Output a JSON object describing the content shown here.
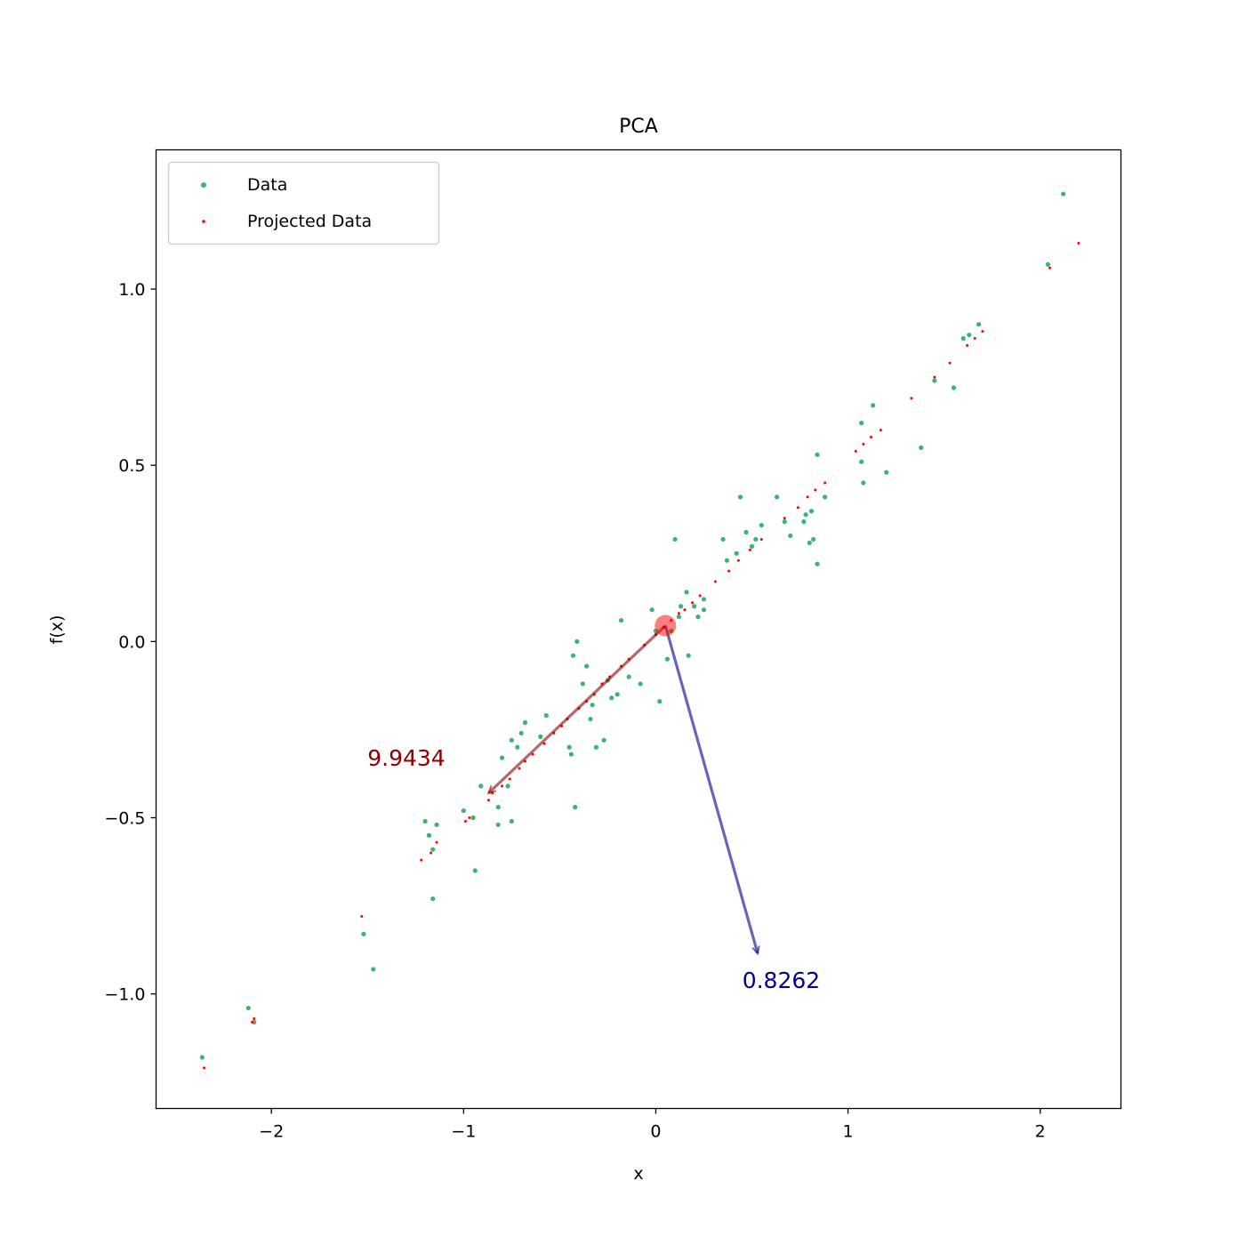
{
  "chart_data": {
    "type": "scatter",
    "title": "PCA",
    "xlabel": "x",
    "ylabel": "f(x)",
    "xlim": [
      -2.6,
      2.42
    ],
    "ylim": [
      -1.325,
      1.395
    ],
    "xticks": [
      {
        "value": -2,
        "label": "−2"
      },
      {
        "value": -1,
        "label": "−1"
      },
      {
        "value": 0,
        "label": "0"
      },
      {
        "value": 1,
        "label": "1"
      },
      {
        "value": 2,
        "label": "2"
      }
    ],
    "yticks": [
      {
        "value": -1.0,
        "label": "−1.0"
      },
      {
        "value": -0.5,
        "label": "−0.5"
      },
      {
        "value": 0.0,
        "label": "0.0"
      },
      {
        "value": 0.5,
        "label": "0.5"
      },
      {
        "value": 1.0,
        "label": "1.0"
      }
    ],
    "grid": false,
    "legend_position": "top-left",
    "series": [
      {
        "name": "Data",
        "color": "#3cb371",
        "marker_size": "medium",
        "points": [
          [
            -2.36,
            -1.18
          ],
          [
            -2.12,
            -1.04
          ],
          [
            -2.09,
            -1.08
          ],
          [
            -1.52,
            -0.83
          ],
          [
            -1.47,
            -0.93
          ],
          [
            -1.2,
            -0.51
          ],
          [
            -1.18,
            -0.55
          ],
          [
            -1.16,
            -0.73
          ],
          [
            -1.14,
            -0.52
          ],
          [
            -1.16,
            -0.59
          ],
          [
            -1.0,
            -0.48
          ],
          [
            -0.95,
            -0.5
          ],
          [
            -0.94,
            -0.65
          ],
          [
            -0.91,
            -0.41
          ],
          [
            -0.82,
            -0.47
          ],
          [
            -0.82,
            -0.52
          ],
          [
            -0.8,
            -0.33
          ],
          [
            -0.77,
            -0.41
          ],
          [
            -0.75,
            -0.28
          ],
          [
            -0.75,
            -0.51
          ],
          [
            -0.72,
            -0.3
          ],
          [
            -0.7,
            -0.26
          ],
          [
            -0.68,
            -0.23
          ],
          [
            -0.6,
            -0.27
          ],
          [
            -0.57,
            -0.21
          ],
          [
            -0.45,
            -0.3
          ],
          [
            -0.44,
            -0.32
          ],
          [
            -0.43,
            -0.04
          ],
          [
            -0.41,
            0.0
          ],
          [
            -0.42,
            -0.47
          ],
          [
            -0.38,
            -0.12
          ],
          [
            -0.36,
            -0.07
          ],
          [
            -0.34,
            -0.22
          ],
          [
            -0.33,
            -0.18
          ],
          [
            -0.31,
            -0.3
          ],
          [
            -0.27,
            -0.28
          ],
          [
            -0.25,
            -0.11
          ],
          [
            -0.23,
            -0.16
          ],
          [
            -0.2,
            -0.15
          ],
          [
            -0.18,
            0.06
          ],
          [
            -0.14,
            -0.1
          ],
          [
            -0.08,
            -0.12
          ],
          [
            -0.02,
            0.09
          ],
          [
            0.0,
            0.03
          ],
          [
            0.02,
            -0.17
          ],
          [
            0.06,
            -0.05
          ],
          [
            0.08,
            0.03
          ],
          [
            0.1,
            0.29
          ],
          [
            0.12,
            0.07
          ],
          [
            0.13,
            0.1
          ],
          [
            0.16,
            0.14
          ],
          [
            0.17,
            -0.04
          ],
          [
            0.2,
            0.1
          ],
          [
            0.22,
            0.07
          ],
          [
            0.25,
            0.12
          ],
          [
            0.25,
            0.09
          ],
          [
            0.35,
            0.29
          ],
          [
            0.37,
            0.23
          ],
          [
            0.42,
            0.25
          ],
          [
            0.44,
            0.41
          ],
          [
            0.47,
            0.31
          ],
          [
            0.5,
            0.27
          ],
          [
            0.52,
            0.29
          ],
          [
            0.55,
            0.33
          ],
          [
            0.63,
            0.41
          ],
          [
            0.67,
            0.34
          ],
          [
            0.7,
            0.3
          ],
          [
            0.77,
            0.34
          ],
          [
            0.78,
            0.36
          ],
          [
            0.8,
            0.28
          ],
          [
            0.81,
            0.37
          ],
          [
            0.82,
            0.29
          ],
          [
            0.84,
            0.53
          ],
          [
            0.84,
            0.22
          ],
          [
            0.88,
            0.41
          ],
          [
            1.07,
            0.62
          ],
          [
            1.07,
            0.51
          ],
          [
            1.08,
            0.45
          ],
          [
            1.13,
            0.67
          ],
          [
            1.2,
            0.48
          ],
          [
            1.38,
            0.55
          ],
          [
            1.45,
            0.74
          ],
          [
            1.55,
            0.72
          ],
          [
            1.6,
            0.86
          ],
          [
            1.63,
            0.87
          ],
          [
            1.68,
            0.9
          ],
          [
            2.04,
            1.07
          ],
          [
            2.12,
            1.27
          ]
        ]
      },
      {
        "name": "Projected Data",
        "color": "#ff0000",
        "marker_size": "small",
        "points": [
          [
            -2.35,
            -1.21
          ],
          [
            -2.1,
            -1.08
          ],
          [
            -2.09,
            -1.07
          ],
          [
            -1.53,
            -0.78
          ],
          [
            -1.22,
            -0.62
          ],
          [
            -1.14,
            -0.57
          ],
          [
            -1.17,
            -0.6
          ],
          [
            -0.99,
            -0.51
          ],
          [
            -0.97,
            -0.5
          ],
          [
            -0.87,
            -0.45
          ],
          [
            -0.85,
            -0.43
          ],
          [
            -0.8,
            -0.41
          ],
          [
            -0.76,
            -0.39
          ],
          [
            -0.71,
            -0.36
          ],
          [
            -0.68,
            -0.34
          ],
          [
            -0.64,
            -0.32
          ],
          [
            -0.58,
            -0.29
          ],
          [
            -0.53,
            -0.26
          ],
          [
            -0.49,
            -0.24
          ],
          [
            -0.46,
            -0.22
          ],
          [
            -0.4,
            -0.19
          ],
          [
            -0.36,
            -0.17
          ],
          [
            -0.32,
            -0.15
          ],
          [
            -0.28,
            -0.12
          ],
          [
            -0.24,
            -0.1
          ],
          [
            -0.18,
            -0.07
          ],
          [
            -0.14,
            -0.05
          ],
          [
            -0.06,
            -0.01
          ],
          [
            0.0,
            0.02
          ],
          [
            0.04,
            0.04
          ],
          [
            0.08,
            0.06
          ],
          [
            0.12,
            0.08
          ],
          [
            0.15,
            0.09
          ],
          [
            0.19,
            0.11
          ],
          [
            0.23,
            0.13
          ],
          [
            0.31,
            0.17
          ],
          [
            0.38,
            0.2
          ],
          [
            0.43,
            0.23
          ],
          [
            0.49,
            0.26
          ],
          [
            0.55,
            0.29
          ],
          [
            0.67,
            0.35
          ],
          [
            0.74,
            0.38
          ],
          [
            0.79,
            0.41
          ],
          [
            0.83,
            0.43
          ],
          [
            0.88,
            0.45
          ],
          [
            1.04,
            0.54
          ],
          [
            1.08,
            0.56
          ],
          [
            1.12,
            0.58
          ],
          [
            1.17,
            0.6
          ],
          [
            1.33,
            0.69
          ],
          [
            1.45,
            0.75
          ],
          [
            1.53,
            0.79
          ],
          [
            1.62,
            0.84
          ],
          [
            1.66,
            0.86
          ],
          [
            1.7,
            0.88
          ],
          [
            2.05,
            1.06
          ],
          [
            2.2,
            1.13
          ]
        ]
      }
    ],
    "mean_point": {
      "x": 0.05,
      "y": 0.045,
      "color": "#ff0000"
    },
    "arrows": [
      {
        "from": [
          0.05,
          0.045
        ],
        "to": [
          -0.87,
          -0.43
        ],
        "color": "#8b0000",
        "label": "9.9434",
        "label_at": [
          -1.5,
          -0.33
        ],
        "label_color": "#8b0000"
      },
      {
        "from": [
          0.05,
          0.045
        ],
        "to": [
          0.53,
          -0.885
        ],
        "color": "#00008b",
        "label": "0.8262",
        "label_at": [
          0.45,
          -0.96
        ],
        "label_color": "#00008b"
      }
    ]
  }
}
